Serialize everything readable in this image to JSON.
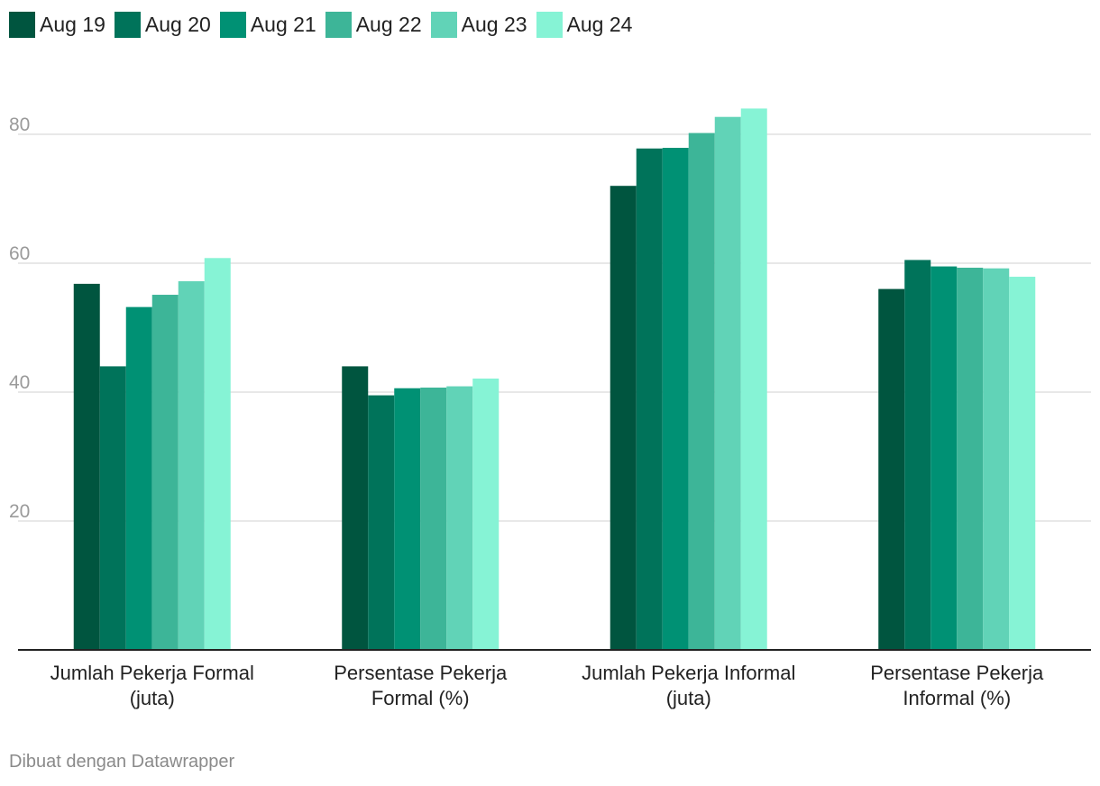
{
  "chart_data": {
    "type": "bar",
    "categories": [
      [
        "Jumlah Pekerja Formal",
        "(juta)"
      ],
      [
        "Persentase Pekerja",
        "Formal (%)"
      ],
      [
        "Jumlah Pekerja Informal",
        "(juta)"
      ],
      [
        "Persentase Pekerja",
        "Informal (%)"
      ]
    ],
    "series": [
      {
        "name": "Aug 19",
        "color": "#00553f",
        "values": [
          56.8,
          44.0,
          72.0,
          56.0
        ]
      },
      {
        "name": "Aug 20",
        "color": "#00735a",
        "values": [
          44.0,
          39.5,
          77.8,
          60.5
        ]
      },
      {
        "name": "Aug 21",
        "color": "#009174",
        "values": [
          53.2,
          40.6,
          77.9,
          59.5
        ]
      },
      {
        "name": "Aug 22",
        "color": "#3db598",
        "values": [
          55.1,
          40.7,
          80.2,
          59.3
        ]
      },
      {
        "name": "Aug 23",
        "color": "#61d3b7",
        "values": [
          57.2,
          40.9,
          82.7,
          59.2
        ]
      },
      {
        "name": "Aug 24",
        "color": "#86f3d5",
        "values": [
          60.8,
          42.1,
          84.0,
          57.9
        ]
      }
    ],
    "yticks": [
      20,
      40,
      60,
      80
    ],
    "ylim": [
      0,
      88
    ],
    "grid": true,
    "legend_position": "top-left",
    "title": "",
    "xlabel": "",
    "ylabel": ""
  },
  "footer": {
    "credit": "Dibuat dengan Datawrapper"
  }
}
